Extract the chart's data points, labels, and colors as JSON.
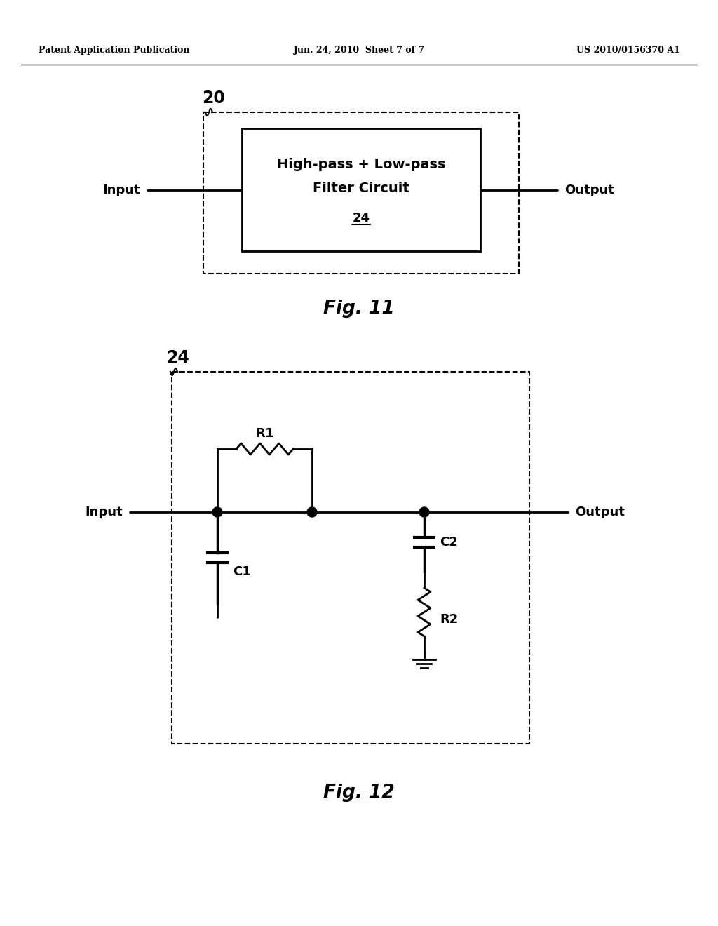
{
  "bg_color": "#ffffff",
  "text_color": "#000000",
  "header_left": "Patent Application Publication",
  "header_center": "Jun. 24, 2010  Sheet 7 of 7",
  "header_right": "US 2010/0156370 A1",
  "fig11_label": "Fig. 11",
  "fig12_label": "Fig. 12",
  "fig11_box_label": "20",
  "fig12_box_label": "24",
  "filter_box_text1": "High-pass + Low-pass",
  "filter_box_text2": "Filter Circuit",
  "filter_box_subtext": "24",
  "fig11_input": "Input",
  "fig11_output": "Output",
  "fig12_input": "Input",
  "fig12_output": "Output",
  "R1_label": "R1",
  "C1_label": "C1",
  "C2_label": "C2",
  "R2_label": "R2"
}
